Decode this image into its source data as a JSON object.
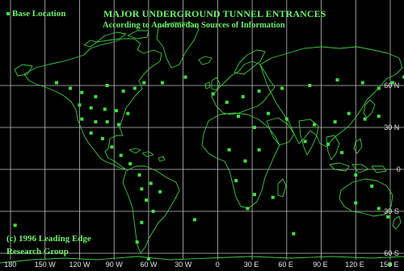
{
  "title": "MAJOR UNDERGROUND  TUNNEL ENTRANCES",
  "subtitle": "According to Andromedan Sources of Information",
  "legend_label": "Base Location",
  "copyright_line1": "(c) 1996 Leading Edge",
  "copyright_line2": "Research Group",
  "colors": {
    "background": "#000000",
    "land_outline": "#3fc83f",
    "grid": "#bfbfbf",
    "marker": "#3fe13f",
    "text": "#6cf06c"
  },
  "longitude_ticks": [
    "180",
    "150 W",
    "120 W",
    "90 W",
    "60 W",
    "30 W",
    "0",
    "30 E",
    "60 E",
    "90 E",
    "120 E",
    "150 E"
  ],
  "latitude_ticks": [
    "60 N",
    "30 N",
    "0",
    "30 S",
    "60 S"
  ],
  "base_locations": [
    {
      "lon": -140,
      "lat": 62
    },
    {
      "lon": -128,
      "lat": 58
    },
    {
      "lon": -118,
      "lat": 55
    },
    {
      "lon": -106,
      "lat": 52
    },
    {
      "lon": -96,
      "lat": 60
    },
    {
      "lon": -82,
      "lat": 56
    },
    {
      "lon": -72,
      "lat": 58
    },
    {
      "lon": -64,
      "lat": 62
    },
    {
      "lon": -120,
      "lat": 46
    },
    {
      "lon": -110,
      "lat": 44
    },
    {
      "lon": -98,
      "lat": 43
    },
    {
      "lon": -88,
      "lat": 42
    },
    {
      "lon": -78,
      "lat": 40
    },
    {
      "lon": -118,
      "lat": 36
    },
    {
      "lon": -106,
      "lat": 34
    },
    {
      "lon": -96,
      "lat": 34
    },
    {
      "lon": -86,
      "lat": 32
    },
    {
      "lon": -110,
      "lat": 26
    },
    {
      "lon": -100,
      "lat": 22
    },
    {
      "lon": -92,
      "lat": 16
    },
    {
      "lon": -84,
      "lat": 10
    },
    {
      "lon": -76,
      "lat": 4
    },
    {
      "lon": -68,
      "lat": -4
    },
    {
      "lon": -58,
      "lat": -10
    },
    {
      "lon": -66,
      "lat": -14
    },
    {
      "lon": -50,
      "lat": -16
    },
    {
      "lon": -62,
      "lat": -22
    },
    {
      "lon": -56,
      "lat": -30
    },
    {
      "lon": -66,
      "lat": -38
    },
    {
      "lon": -70,
      "lat": -52
    },
    {
      "lon": -176,
      "lat": -40
    },
    {
      "lon": -48,
      "lat": 62
    },
    {
      "lon": -28,
      "lat": 66
    },
    {
      "lon": -4,
      "lat": 54
    },
    {
      "lon": 8,
      "lat": 48
    },
    {
      "lon": 22,
      "lat": 52
    },
    {
      "lon": 36,
      "lat": 56
    },
    {
      "lon": 56,
      "lat": 58
    },
    {
      "lon": 80,
      "lat": 60
    },
    {
      "lon": 104,
      "lat": 64
    },
    {
      "lon": 126,
      "lat": 62
    },
    {
      "lon": 140,
      "lat": 58
    },
    {
      "lon": 152,
      "lat": 62
    },
    {
      "lon": 162,
      "lat": 66
    },
    {
      "lon": 18,
      "lat": 38
    },
    {
      "lon": 32,
      "lat": 30
    },
    {
      "lon": 44,
      "lat": 40
    },
    {
      "lon": 60,
      "lat": 36
    },
    {
      "lon": 84,
      "lat": 32
    },
    {
      "lon": 102,
      "lat": 34
    },
    {
      "lon": 114,
      "lat": 40
    },
    {
      "lon": 128,
      "lat": 36
    },
    {
      "lon": 140,
      "lat": 38
    },
    {
      "lon": 76,
      "lat": 20
    },
    {
      "lon": 96,
      "lat": 18
    },
    {
      "lon": 108,
      "lat": 12
    },
    {
      "lon": 10,
      "lat": 14
    },
    {
      "lon": 24,
      "lat": 6
    },
    {
      "lon": 36,
      "lat": 14
    },
    {
      "lon": 16,
      "lat": -8
    },
    {
      "lon": 32,
      "lat": -18
    },
    {
      "lon": 26,
      "lat": -28
    },
    {
      "lon": 48,
      "lat": -20
    },
    {
      "lon": 120,
      "lat": -4
    },
    {
      "lon": 134,
      "lat": -12
    },
    {
      "lon": 120,
      "lat": -24
    },
    {
      "lon": 140,
      "lat": -28
    },
    {
      "lon": 148,
      "lat": -34
    },
    {
      "lon": 172,
      "lat": -42
    },
    {
      "lon": -20,
      "lat": -36
    },
    {
      "lon": 66,
      "lat": -46
    },
    {
      "lon": -60,
      "lat": -64
    },
    {
      "lon": 150,
      "lat": -68
    }
  ]
}
